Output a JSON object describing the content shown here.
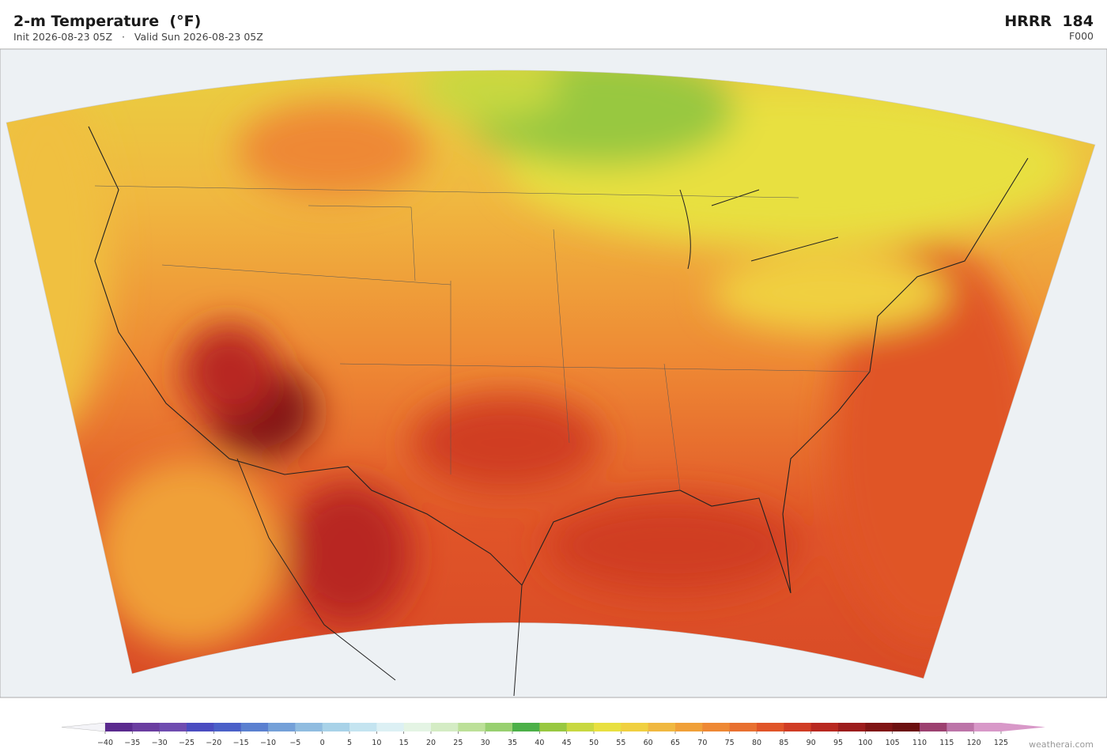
{
  "header": {
    "title": "2-m Temperature  (°F)",
    "init": "Init 2026-08-23 05Z",
    "separator": "·",
    "valid": "Valid Sun 2026-08-23 05Z",
    "model": "HRRR  184",
    "forecast_hour": "F000"
  },
  "colorbar": {
    "ticks": [
      {
        "value": -40,
        "label": "−40"
      },
      {
        "value": -35,
        "label": "−35"
      },
      {
        "value": -30,
        "label": "−30"
      },
      {
        "value": -25,
        "label": "−25"
      },
      {
        "value": -20,
        "label": "−20"
      },
      {
        "value": -15,
        "label": "−15"
      },
      {
        "value": -10,
        "label": "−10"
      },
      {
        "value": -5,
        "label": "−5"
      },
      0,
      5,
      10,
      15,
      20,
      25,
      30,
      35,
      40,
      45,
      50,
      55,
      60,
      65,
      70,
      75,
      80,
      85,
      90,
      95,
      100,
      105,
      110,
      115,
      120,
      125
    ],
    "colors": [
      "#5a2a8e",
      "#6a3da0",
      "#6f4cb0",
      "#4a4cc0",
      "#4a60c8",
      "#5a80d0",
      "#74a0d8",
      "#90bce0",
      "#a8d2e8",
      "#c4e4f0",
      "#dcf0f4",
      "#e4f4e4",
      "#d4ecc4",
      "#bce098",
      "#98d070",
      "#4cb048",
      "#98c840",
      "#c8d840",
      "#e8e040",
      "#f0d040",
      "#f0b840",
      "#f0a038",
      "#ee8834",
      "#e87030",
      "#e05428",
      "#d03c24",
      "#b82820",
      "#9c1c1c",
      "#801414",
      "#6c1010",
      "#9c4070",
      "#bc74a8",
      "#d898c8"
    ],
    "under_color": "#f4f4f8",
    "over_color": "#d898c8"
  },
  "footer": {
    "credit": "weatherai.com"
  }
}
